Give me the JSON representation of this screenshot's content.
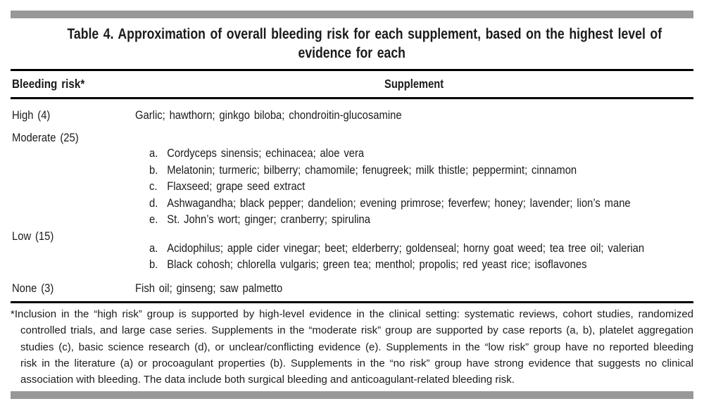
{
  "colors": {
    "background": "#ffffff",
    "divider_bar": "#98989a",
    "rule": "#000000",
    "text": "#1b1b1b"
  },
  "table": {
    "title_lines": [
      "Table 4. Approximation of overall bleeding risk for each supplement, based on the highest level of",
      "evidence for each"
    ],
    "header": {
      "risk": "Bleeding risk*",
      "supplement": "Supplement"
    },
    "rows": [
      {
        "risk": "High (4)",
        "supplement": "Garlic; hawthorn; ginkgo biloba; chondroitin-glucosamine"
      },
      {
        "risk": "Moderate (25)",
        "items": [
          {
            "letter": "a.",
            "text": "Cordyceps sinensis; echinacea; aloe vera"
          },
          {
            "letter": "b.",
            "text": "Melatonin; turmeric; bilberry; chamomile; fenugreek; milk thistle; peppermint; cinnamon"
          },
          {
            "letter": "c.",
            "text": "Flaxseed; grape seed extract"
          },
          {
            "letter": "d.",
            "text": "Ashwagandha; black pepper; dandelion; evening primrose; feverfew; honey; lavender; lion’s mane"
          },
          {
            "letter": "e.",
            "text": "St. John’s wort; ginger; cranberry; spirulina"
          }
        ]
      },
      {
        "risk": "Low (15)",
        "items": [
          {
            "letter": "a.",
            "text": "Acidophilus; apple cider vinegar; beet; elderberry; goldenseal; horny goat weed; tea tree oil; valerian"
          },
          {
            "letter": "b.",
            "text": "Black cohosh; chlorella vulgaris; green tea; menthol; propolis; red yeast rice; isoflavones"
          }
        ]
      },
      {
        "risk": "None (3)",
        "supplement": "Fish oil; ginseng; saw palmetto"
      }
    ],
    "footnote_lines": [
      "*Inclusion in the “high risk” group is supported by high-level evidence in the clinical setting: systematic reviews, cohort studies, randomized",
      "controlled trials, and large case series. Supplements in the “moderate risk” group are supported by case reports (a, b), platelet aggregation",
      "studies (c), basic science research (d), or unclear/conflicting evidence (e). Supplements in the “low risk” group have no reported bleeding",
      "risk in the literature (a) or procoagulant properties (b). Supplements in the “no risk” group have strong evidence that suggests no clinical",
      "association with bleeding. The data include both surgical bleeding and anticoagulant-related bleeding risk."
    ]
  }
}
